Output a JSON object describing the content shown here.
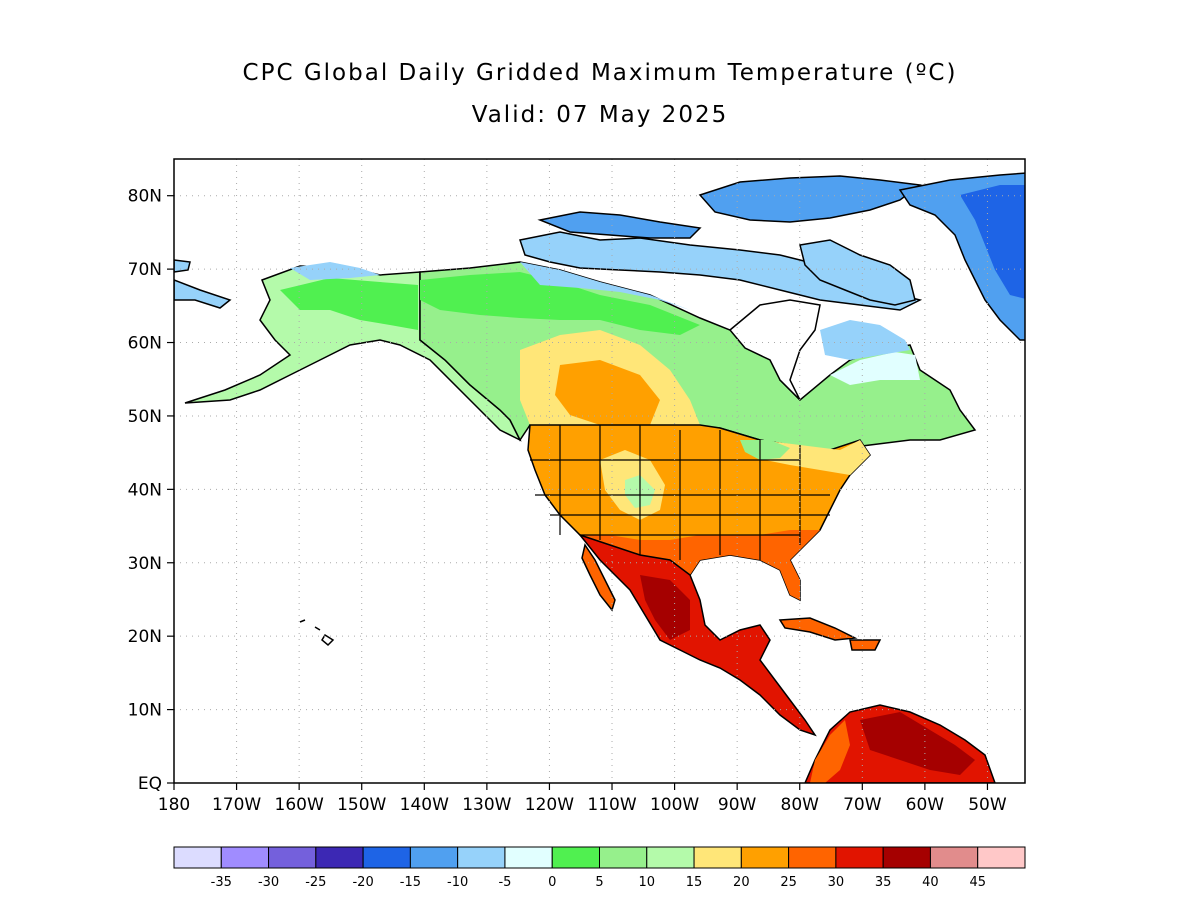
{
  "title": "CPC Global Daily Gridded Maximum Temperature (ºC)",
  "subtitle": "Valid: 07 May 2025",
  "map": {
    "region": "North America",
    "lat_range": [
      0,
      85
    ],
    "lon_range": [
      -180,
      -44
    ],
    "grid_lines": "dotted",
    "lat_labels": [
      "80N",
      "70N",
      "60N",
      "50N",
      "40N",
      "30N",
      "20N",
      "10N",
      "EQ"
    ],
    "lon_labels": [
      "180",
      "170W",
      "160W",
      "150W",
      "140W",
      "130W",
      "120W",
      "110W",
      "100W",
      "90W",
      "80W",
      "70W",
      "60W",
      "50W"
    ]
  },
  "colorbar": {
    "labels": [
      "-35",
      "-30",
      "-25",
      "-20",
      "-15",
      "-10",
      "-5",
      "0",
      "5",
      "10",
      "15",
      "20",
      "25",
      "30",
      "35",
      "40",
      "45"
    ],
    "colors": [
      "#dcdcff",
      "#a08cff",
      "#7460dc",
      "#3c28b4",
      "#1e64e6",
      "#50a0f0",
      "#96d2fa",
      "#e1ffff",
      "#50f050",
      "#96f08c",
      "#b4faaa",
      "#ffe678",
      "#ffa000",
      "#ff6400",
      "#e11400",
      "#a50000",
      "#e18c8c",
      "#ffc8c8"
    ]
  }
}
